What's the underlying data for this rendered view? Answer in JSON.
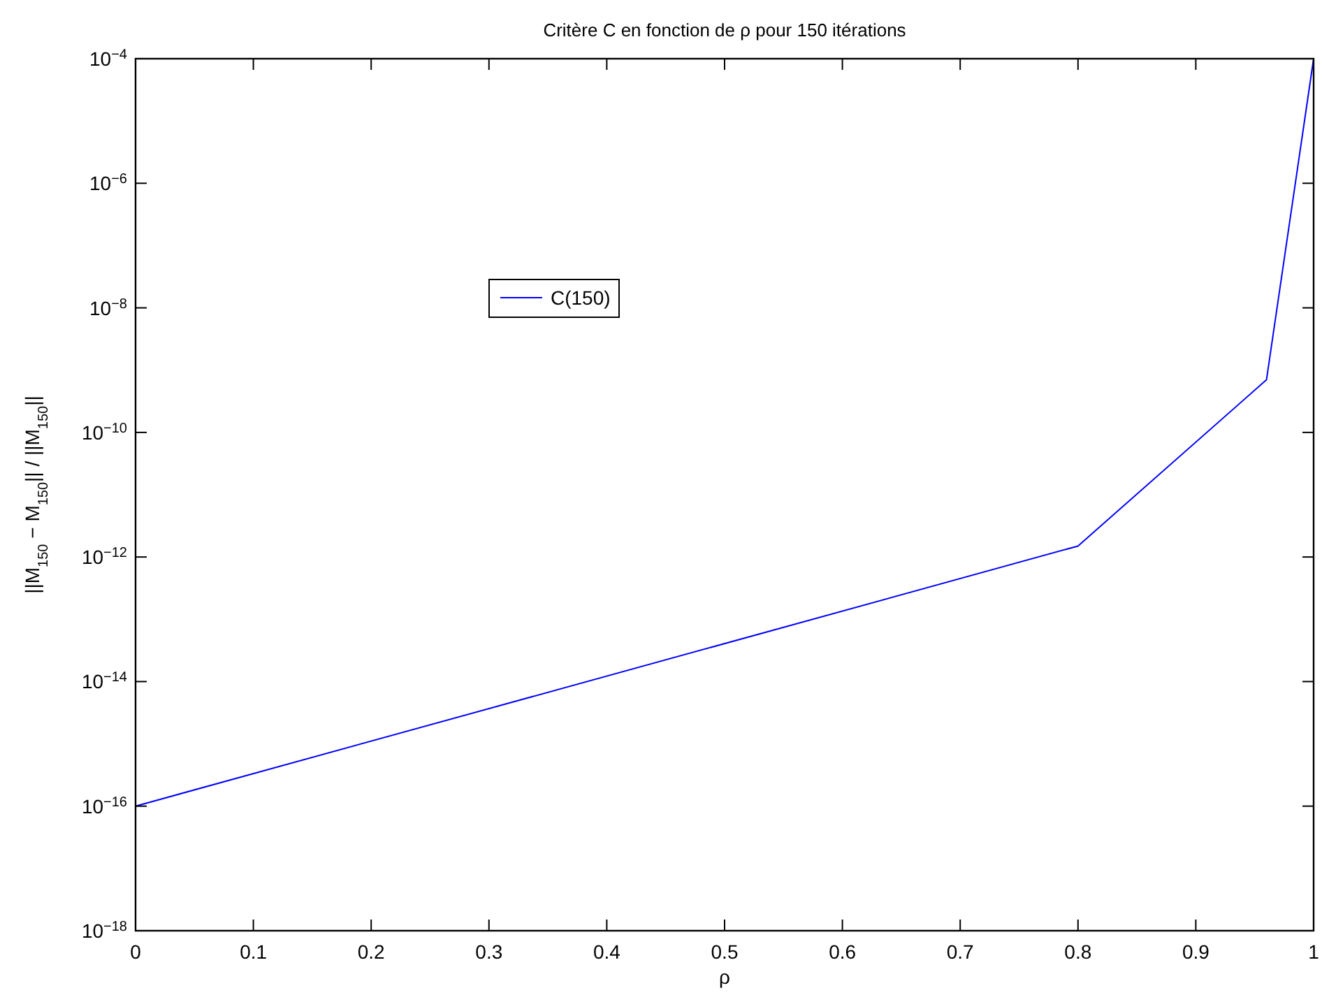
{
  "chart_data": {
    "type": "line",
    "title": "Critère C en fonction de ρ pour 150 itérations",
    "xlabel": "ρ",
    "ylabel": "||M$_{150}$ − M$_{150}$|| / ||M$_{150}$||",
    "x": [
      0,
      0.8,
      0.96,
      1
    ],
    "series": [
      {
        "name": "C(150)",
        "color": "#0000ff",
        "values": [
          1e-16,
          1.5e-12,
          7e-10,
          0.0001
        ]
      }
    ],
    "log": "y",
    "xlim": [
      0,
      1
    ],
    "xticks": [
      0,
      0.1,
      0.2,
      0.3,
      0.4,
      0.5,
      0.6,
      0.7,
      0.8,
      0.9,
      1
    ],
    "ylim": [
      1e-18,
      0.0001
    ],
    "yticks": [
      {
        "value": 1e-18,
        "label": "10$^{−18}$"
      },
      {
        "value": 1e-16,
        "label": "10$^{−16}$"
      },
      {
        "value": 1e-14,
        "label": "10$^{−14}$"
      },
      {
        "value": 1e-12,
        "label": "10$^{−12}$"
      },
      {
        "value": 1e-10,
        "label": "10$^{−10}$"
      },
      {
        "value": 1e-08,
        "label": "10$^{−8}$"
      },
      {
        "value": 1e-06,
        "label": "10$^{−6}$"
      },
      {
        "value": 0.0001,
        "label": "10$^{−4}$"
      }
    ],
    "grid": false,
    "legend": "top left",
    "marker": "none",
    "line_style": "solid"
  }
}
